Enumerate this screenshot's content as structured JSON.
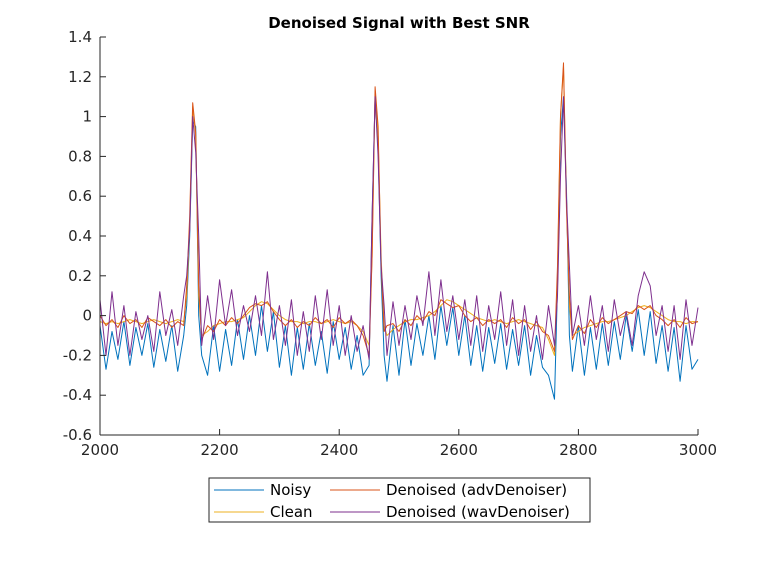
{
  "chart_data": {
    "type": "line",
    "title": "Denoised Signal with Best SNR",
    "xlabel": "",
    "ylabel": "",
    "xlim": [
      2000,
      3000
    ],
    "ylim": [
      -0.6,
      1.4
    ],
    "xticks": [
      2000,
      2200,
      2400,
      2600,
      2800,
      3000
    ],
    "xtick_labels": [
      "2000",
      "2200",
      "2400",
      "2600",
      "2800",
      "3000"
    ],
    "yticks": [
      1.4,
      1.2,
      1,
      0.8,
      0.6,
      0.4,
      0.2,
      0,
      -0.2,
      -0.4,
      -0.6
    ],
    "ytick_labels": [
      "1.4",
      "1.2",
      "1",
      "0.8",
      "0.6",
      "0.4",
      "0.2",
      "0",
      "-0.2",
      "-0.4",
      "-0.6"
    ],
    "grid": false,
    "legend_position": "bottom-outside",
    "x": [
      2000,
      2010,
      2020,
      2030,
      2040,
      2050,
      2060,
      2070,
      2080,
      2090,
      2100,
      2110,
      2120,
      2130,
      2140,
      2145,
      2150,
      2155,
      2160,
      2165,
      2170,
      2180,
      2190,
      2200,
      2210,
      2220,
      2230,
      2240,
      2250,
      2260,
      2270,
      2280,
      2290,
      2300,
      2310,
      2320,
      2330,
      2340,
      2350,
      2360,
      2370,
      2380,
      2390,
      2400,
      2410,
      2420,
      2430,
      2440,
      2450,
      2455,
      2460,
      2465,
      2470,
      2475,
      2480,
      2490,
      2500,
      2510,
      2520,
      2530,
      2540,
      2550,
      2560,
      2570,
      2580,
      2590,
      2600,
      2610,
      2620,
      2630,
      2640,
      2650,
      2660,
      2670,
      2680,
      2690,
      2700,
      2710,
      2720,
      2730,
      2740,
      2750,
      2760,
      2765,
      2770,
      2775,
      2780,
      2785,
      2790,
      2800,
      2810,
      2820,
      2830,
      2840,
      2850,
      2860,
      2870,
      2880,
      2890,
      2900,
      2910,
      2920,
      2930,
      2940,
      2950,
      2960,
      2970,
      2980,
      2990,
      3000
    ],
    "series": [
      {
        "name": "Noisy",
        "color": "#0072BD",
        "values": [
          -0.05,
          -0.27,
          -0.08,
          -0.22,
          -0.03,
          -0.25,
          -0.06,
          -0.2,
          -0.04,
          -0.26,
          -0.07,
          -0.23,
          -0.05,
          -0.28,
          -0.1,
          0.05,
          0.4,
          0.98,
          0.95,
          0.0,
          -0.2,
          -0.3,
          -0.05,
          -0.28,
          -0.07,
          -0.25,
          -0.02,
          -0.22,
          0.0,
          -0.2,
          0.05,
          -0.18,
          0.02,
          -0.26,
          -0.05,
          -0.3,
          -0.06,
          -0.27,
          -0.04,
          -0.25,
          -0.08,
          -0.29,
          -0.03,
          -0.22,
          -0.06,
          -0.27,
          -0.1,
          -0.3,
          -0.25,
          0.5,
          1.1,
          0.85,
          0.2,
          -0.2,
          -0.33,
          -0.05,
          -0.3,
          -0.02,
          -0.25,
          -0.04,
          -0.2,
          0.0,
          -0.22,
          0.05,
          -0.15,
          0.04,
          -0.2,
          0.0,
          -0.25,
          -0.05,
          -0.28,
          -0.06,
          -0.24,
          -0.04,
          -0.27,
          -0.07,
          -0.25,
          -0.05,
          -0.3,
          -0.1,
          -0.26,
          -0.3,
          -0.42,
          0.15,
          0.9,
          1.1,
          0.65,
          -0.1,
          -0.28,
          -0.05,
          -0.3,
          -0.06,
          -0.27,
          -0.04,
          -0.25,
          -0.03,
          -0.22,
          0.0,
          -0.18,
          0.03,
          -0.2,
          0.02,
          -0.24,
          -0.05,
          -0.28,
          -0.06,
          -0.33,
          -0.05,
          -0.27,
          -0.22
        ]
      },
      {
        "name": "Clean",
        "color": "#EDB120",
        "values": [
          -0.03,
          -0.04,
          -0.03,
          -0.04,
          -0.03,
          -0.02,
          -0.03,
          -0.04,
          -0.03,
          -0.02,
          -0.03,
          -0.04,
          -0.03,
          -0.02,
          -0.03,
          0.1,
          0.45,
          1.05,
          0.9,
          0.1,
          -0.1,
          -0.08,
          -0.05,
          -0.04,
          -0.03,
          -0.03,
          -0.02,
          -0.01,
          0.02,
          0.05,
          0.07,
          0.06,
          0.03,
          0.0,
          -0.02,
          -0.03,
          -0.03,
          -0.04,
          -0.03,
          -0.03,
          -0.04,
          -0.03,
          -0.02,
          -0.03,
          -0.04,
          -0.03,
          -0.05,
          -0.08,
          -0.15,
          0.3,
          1.13,
          0.9,
          0.3,
          -0.05,
          -0.1,
          -0.07,
          -0.05,
          -0.03,
          -0.02,
          -0.02,
          -0.01,
          0.0,
          0.02,
          0.05,
          0.08,
          0.07,
          0.05,
          0.03,
          0.01,
          -0.01,
          -0.02,
          -0.03,
          -0.02,
          -0.03,
          -0.04,
          -0.03,
          -0.02,
          -0.03,
          -0.04,
          -0.05,
          -0.06,
          -0.12,
          -0.2,
          0.2,
          1.0,
          1.25,
          0.6,
          0.05,
          -0.1,
          -0.08,
          -0.06,
          -0.05,
          -0.04,
          -0.03,
          -0.03,
          -0.02,
          -0.01,
          0.0,
          0.02,
          0.04,
          0.05,
          0.04,
          0.02,
          0.0,
          -0.02,
          -0.03,
          -0.03,
          -0.04,
          -0.03,
          -0.03
        ]
      },
      {
        "name": "Denoised (advDenoiser)",
        "color": "#D95319",
        "values": [
          0.0,
          -0.05,
          -0.02,
          -0.06,
          0.0,
          -0.04,
          -0.02,
          -0.06,
          -0.01,
          -0.03,
          -0.05,
          -0.02,
          -0.06,
          -0.03,
          -0.05,
          0.15,
          0.5,
          1.07,
          0.92,
          0.15,
          -0.12,
          -0.05,
          -0.08,
          -0.02,
          -0.05,
          -0.01,
          -0.04,
          0.0,
          0.04,
          0.06,
          0.05,
          0.07,
          0.02,
          -0.02,
          -0.05,
          -0.02,
          -0.06,
          -0.03,
          -0.05,
          -0.01,
          -0.04,
          -0.02,
          -0.06,
          -0.01,
          -0.04,
          -0.02,
          -0.05,
          -0.1,
          -0.2,
          0.3,
          1.15,
          0.95,
          0.25,
          -0.08,
          -0.05,
          -0.04,
          -0.08,
          -0.02,
          -0.05,
          0.0,
          -0.03,
          0.02,
          0.0,
          0.08,
          0.06,
          0.04,
          0.05,
          0.0,
          -0.03,
          -0.01,
          -0.05,
          -0.02,
          -0.04,
          -0.02,
          -0.06,
          -0.01,
          -0.04,
          -0.02,
          -0.07,
          -0.03,
          -0.08,
          -0.1,
          -0.18,
          0.25,
          1.0,
          1.27,
          0.55,
          0.1,
          -0.12,
          -0.05,
          -0.09,
          -0.02,
          -0.06,
          -0.01,
          -0.04,
          -0.02,
          0.0,
          0.02,
          0.01,
          0.05,
          0.03,
          0.05,
          0.0,
          -0.02,
          -0.05,
          -0.02,
          -0.06,
          -0.01,
          -0.04,
          -0.03
        ]
      },
      {
        "name": "Denoised (wavDenoiser)",
        "color": "#7E2F8E",
        "values": [
          0.08,
          -0.2,
          0.12,
          -0.15,
          0.05,
          -0.2,
          0.02,
          -0.12,
          0.0,
          -0.18,
          0.12,
          -0.1,
          0.03,
          -0.15,
          0.1,
          0.2,
          0.43,
          1.0,
          0.82,
          0.4,
          -0.15,
          0.1,
          -0.12,
          0.18,
          -0.05,
          0.13,
          -0.1,
          0.05,
          -0.08,
          0.1,
          -0.1,
          0.22,
          -0.12,
          0.05,
          -0.15,
          0.08,
          -0.2,
          0.02,
          -0.18,
          0.1,
          -0.12,
          0.13,
          -0.15,
          0.05,
          -0.2,
          0.0,
          -0.18,
          -0.05,
          -0.22,
          0.5,
          1.1,
          0.8,
          0.25,
          0.05,
          -0.2,
          0.07,
          -0.15,
          0.05,
          -0.12,
          0.1,
          -0.05,
          0.22,
          -0.1,
          0.18,
          -0.08,
          0.1,
          -0.12,
          0.08,
          -0.15,
          0.1,
          -0.18,
          0.05,
          -0.12,
          0.12,
          -0.15,
          0.08,
          -0.2,
          0.05,
          -0.18,
          0.0,
          -0.22,
          0.05,
          -0.15,
          0.1,
          0.7,
          1.1,
          0.6,
          0.25,
          -0.1,
          0.05,
          -0.15,
          0.1,
          -0.12,
          0.05,
          -0.18,
          0.08,
          -0.1,
          0.02,
          -0.15,
          0.1,
          0.22,
          0.15,
          -0.1,
          0.05,
          -0.18,
          0.05,
          -0.22,
          0.08,
          -0.15,
          0.04
        ]
      }
    ]
  }
}
